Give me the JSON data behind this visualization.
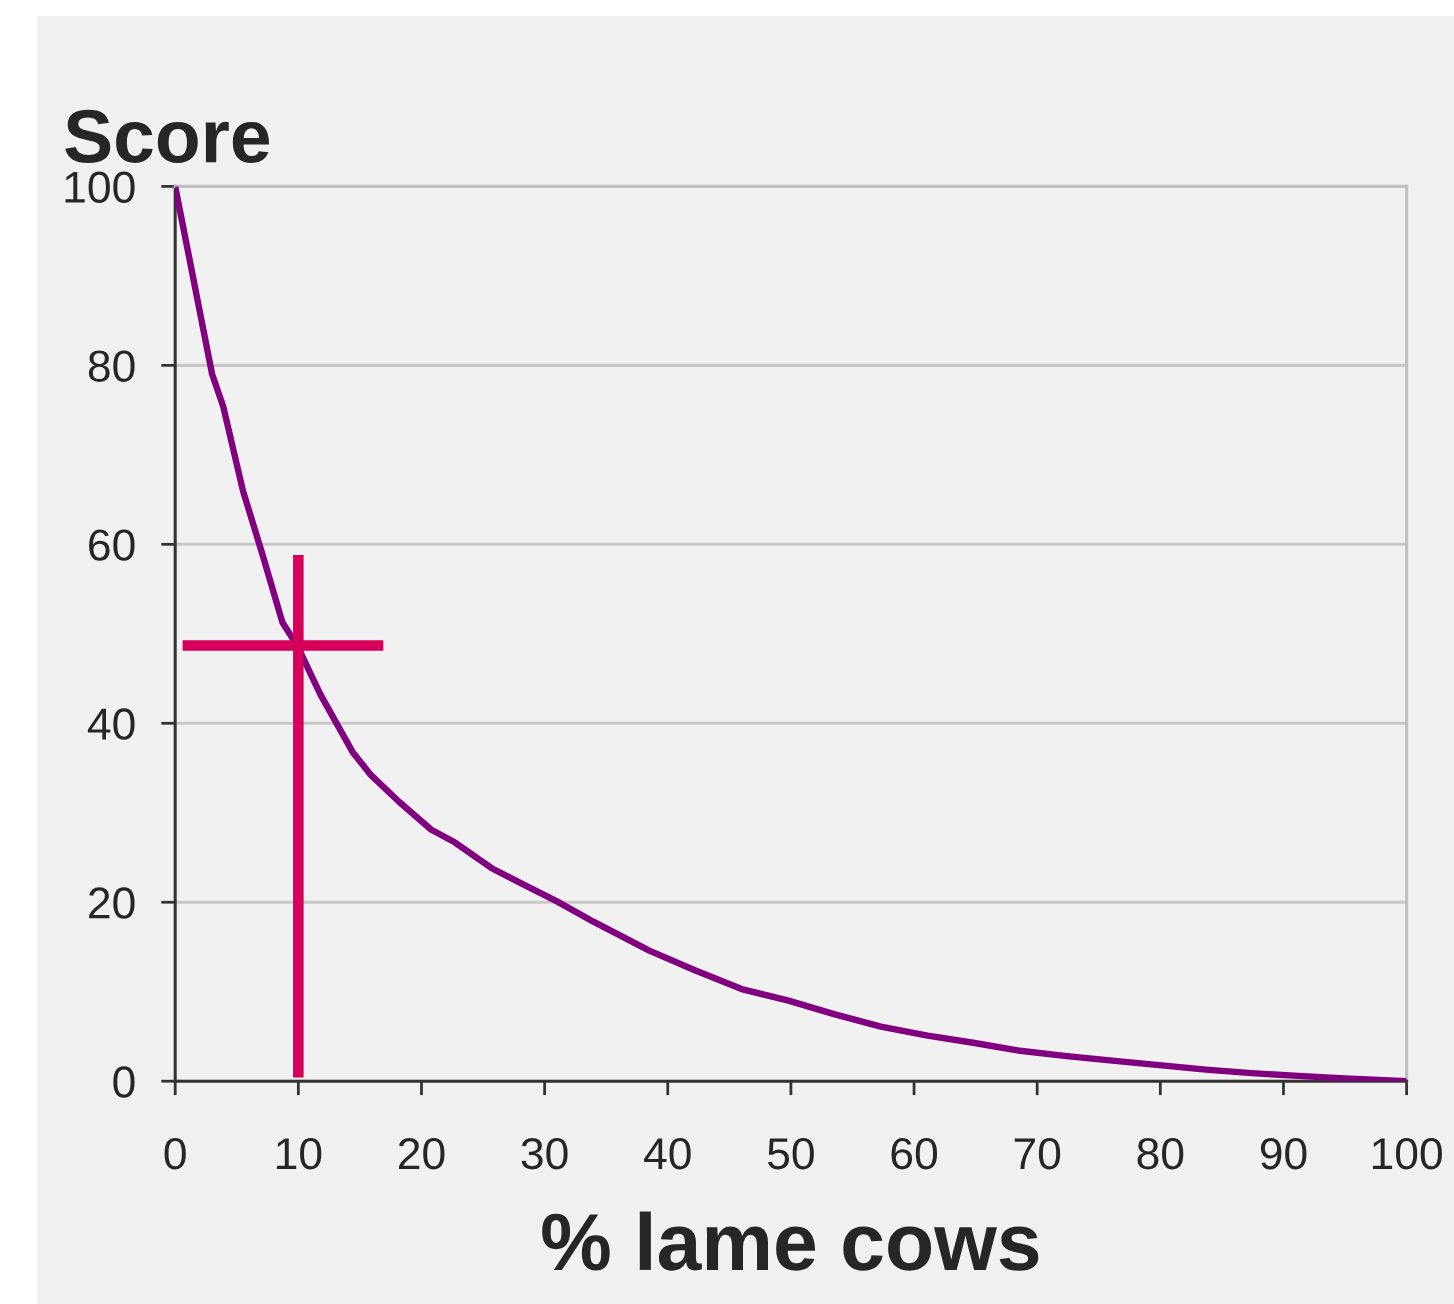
{
  "chart_data": {
    "type": "line",
    "ylabel": "Score",
    "xlabel": "% lame cows",
    "xlim": [
      0,
      100
    ],
    "xticks": [
      0,
      10,
      20,
      30,
      40,
      50,
      60,
      70,
      80,
      90,
      100
    ],
    "ylim": [
      0,
      100
    ],
    "yticks": [
      0,
      20,
      40,
      60,
      80,
      100
    ],
    "grid": "y",
    "series": [
      {
        "color": "#800080",
        "x": [
          0,
          3,
          3.9,
          5.5,
          7.1,
          8.7,
          9.9,
          11.8,
          14.4,
          15.9,
          18.2,
          20.8,
          22.7,
          25.7,
          28.7,
          31,
          34,
          38.5,
          42.2,
          46,
          49.8,
          53.5,
          57.3,
          61.1,
          64.8,
          68.6,
          72.4,
          76.1,
          79.9,
          83.7,
          87.4,
          91.2,
          95,
          100
        ],
        "values": [
          100,
          79,
          75.4,
          66,
          58.8,
          51.3,
          48.7,
          43.2,
          36.8,
          34.2,
          31.2,
          28.1,
          26.7,
          23.8,
          21.7,
          20.1,
          17.8,
          14.6,
          12.4,
          10.3,
          9,
          7.5,
          6.1,
          5.1,
          4.3,
          3.4,
          2.8,
          2.3,
          1.8,
          1.3,
          0.9,
          0.6,
          0.3,
          0
        ]
      },
      {
        "color": "#d6005a",
        "x": [
          10,
          10
        ],
        "values": [
          0.4,
          58.8
        ]
      },
      {
        "color": "#d6005a",
        "x": [
          0.6,
          16.9
        ],
        "values": [
          48.7,
          48.7
        ]
      }
    ]
  }
}
